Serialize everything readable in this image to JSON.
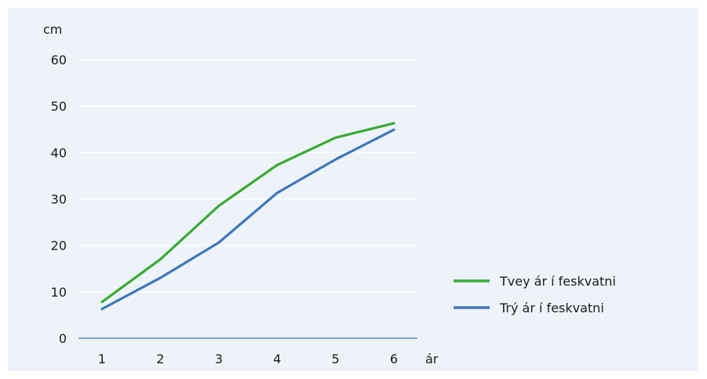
{
  "chart_data": {
    "type": "line",
    "ylabel": "cm",
    "xlabel": "ár",
    "categories": [
      "1",
      "2",
      "3",
      "4",
      "5",
      "6"
    ],
    "yticks": [
      "0",
      "10",
      "20",
      "30",
      "40",
      "50",
      "60"
    ],
    "ylim": [
      0,
      60
    ],
    "grid": true,
    "legend_position": "right",
    "series": [
      {
        "name": "Tvey ár í feskvatni",
        "color": "#3aaa35",
        "values": [
          7.8,
          17,
          28.5,
          37.3,
          43.2,
          46.3
        ]
      },
      {
        "name": "Trý ár í feskvatni",
        "color": "#3f78b8",
        "values": [
          6.3,
          13,
          20.6,
          31.3,
          38.5,
          44.9
        ]
      }
    ]
  }
}
